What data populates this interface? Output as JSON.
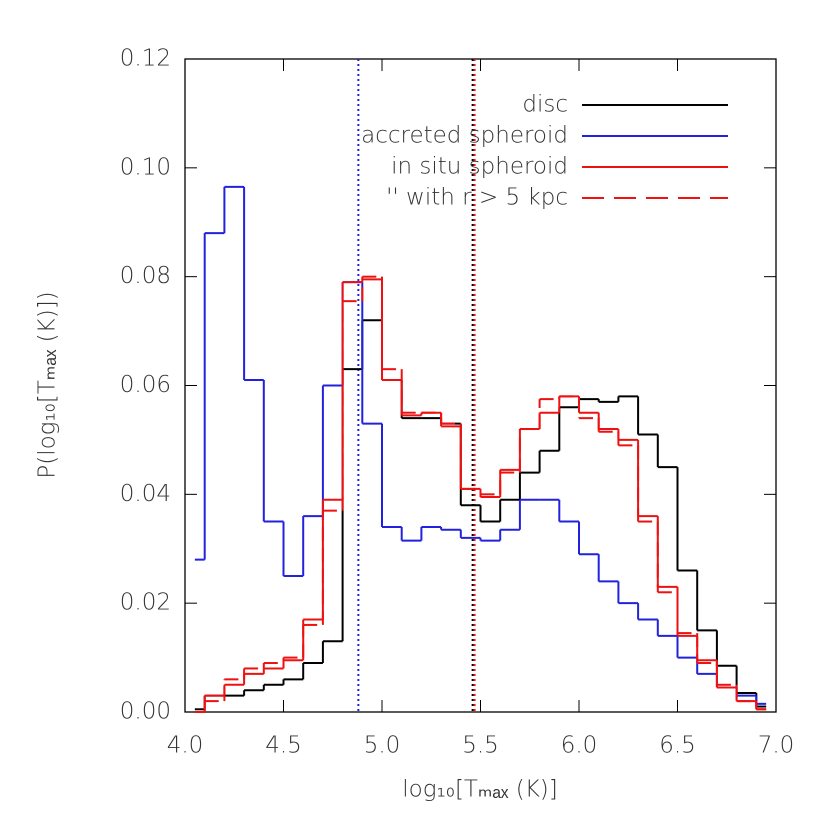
{
  "chart_data": {
    "type": "line",
    "drawstyle": "steps-mid",
    "xlabel": "log₁₀[Tₘₐₓ (K)]",
    "ylabel": "P(log₁₀[Tₘₐₓ (K)])",
    "x": [
      4.05,
      4.15,
      4.25,
      4.35,
      4.45,
      4.55,
      4.65,
      4.75,
      4.85,
      4.95,
      5.05,
      5.15,
      5.25,
      5.35,
      5.45,
      5.55,
      5.65,
      5.75,
      5.85,
      5.95,
      6.05,
      6.15,
      6.25,
      6.35,
      6.45,
      6.55,
      6.65,
      6.75,
      6.85,
      6.95
    ],
    "series": [
      {
        "name": "disc",
        "color": "#000000",
        "linestyle": "solid",
        "values": [
          0.0005,
          0.003,
          0.003,
          0.004,
          0.005,
          0.006,
          0.009,
          0.013,
          0.063,
          0.072,
          0.061,
          0.054,
          0.054,
          0.053,
          0.038,
          0.035,
          0.039,
          0.044,
          0.048,
          0.056,
          0.0575,
          0.057,
          0.058,
          0.051,
          0.045,
          0.026,
          0.015,
          0.0085,
          0.0035,
          0.001
        ]
      },
      {
        "name": "accreted spheroid",
        "color": "#2222dd",
        "linestyle": "solid",
        "values": [
          0.028,
          0.088,
          0.0965,
          0.061,
          0.035,
          0.025,
          0.036,
          0.06,
          0.079,
          0.053,
          0.034,
          0.0315,
          0.034,
          0.0335,
          0.032,
          0.0315,
          0.0335,
          0.039,
          0.039,
          0.035,
          0.029,
          0.024,
          0.02,
          0.017,
          0.014,
          0.01,
          0.007,
          0.0045,
          0.003,
          0.0015
        ]
      },
      {
        "name": "in situ spheroid",
        "color": "#ee1111",
        "linestyle": "solid",
        "values": [
          0.0,
          0.003,
          0.005,
          0.007,
          0.008,
          0.0095,
          0.017,
          0.039,
          0.079,
          0.0795,
          0.061,
          0.0545,
          0.055,
          0.0525,
          0.041,
          0.0395,
          0.0445,
          0.052,
          0.055,
          0.058,
          0.055,
          0.052,
          0.05,
          0.036,
          0.023,
          0.014,
          0.0095,
          0.0045,
          0.002,
          0.0005
        ]
      },
      {
        "name": "'' with r > 5 kpc",
        "color": "#ee1111",
        "linestyle": "dashed",
        "values": [
          0.0,
          0.002,
          0.006,
          0.008,
          0.009,
          0.01,
          0.016,
          0.037,
          0.0755,
          0.08,
          0.063,
          0.055,
          0.055,
          0.053,
          0.041,
          0.04,
          0.044,
          0.052,
          0.0575,
          0.058,
          0.054,
          0.0515,
          0.049,
          0.035,
          0.022,
          0.0145,
          0.009,
          0.005,
          0.002,
          0.0005
        ]
      }
    ],
    "vlines": [
      {
        "x": 4.88,
        "color": "#2222dd"
      },
      {
        "x": 5.46,
        "color": "#000000"
      },
      {
        "x": 5.47,
        "color": "#ee1111"
      }
    ],
    "xlim": [
      4.0,
      7.0
    ],
    "ylim": [
      0.0,
      0.12
    ],
    "xticks": [
      {
        "value": 4.0,
        "label": "4.0"
      },
      {
        "value": 4.5,
        "label": "4.5"
      },
      {
        "value": 5.0,
        "label": "5.0"
      },
      {
        "value": 5.5,
        "label": "5.5"
      },
      {
        "value": 6.0,
        "label": "6.0"
      },
      {
        "value": 6.5,
        "label": "6.5"
      },
      {
        "value": 7.0,
        "label": "7.0"
      }
    ],
    "yticks": [
      {
        "value": 0.0,
        "label": "0.00"
      },
      {
        "value": 0.02,
        "label": "0.02"
      },
      {
        "value": 0.04,
        "label": "0.04"
      },
      {
        "value": 0.06,
        "label": "0.06"
      },
      {
        "value": 0.08,
        "label": "0.08"
      },
      {
        "value": 0.1,
        "label": "0.10"
      },
      {
        "value": 0.12,
        "label": "0.12"
      }
    ],
    "grid": false,
    "legend": "upper right"
  }
}
